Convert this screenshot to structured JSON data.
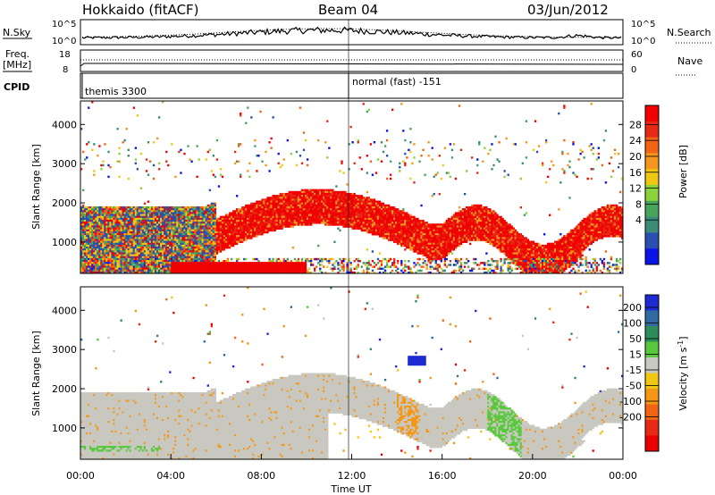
{
  "header": {
    "radar": "Hokkaido (fitACF)",
    "beam": "Beam 04",
    "date": "03/Jun/2012"
  },
  "colors": {
    "power_scale": [
      "#0a14e6",
      "#2a4fb0",
      "#3c8c78",
      "#46a55a",
      "#8cd23c",
      "#f0c814",
      "#f5961e",
      "#f06414",
      "#e62814",
      "#f00000"
    ],
    "velocity_scale": [
      "#1e2ad2",
      "#2f6aa0",
      "#2e8c5a",
      "#58c83c",
      "#c8c8c0",
      "#f0c814",
      "#f59614",
      "#f06414",
      "#e62814",
      "#e80000"
    ]
  },
  "chart_data": [
    {
      "type": "line",
      "panel": "nsky-nsearch",
      "left_label": "N.Sky",
      "right_label": "N.Search",
      "left_ticks": [
        "10^5",
        "10^0"
      ],
      "right_ticks": [
        "10^5",
        "10^0"
      ],
      "xlim": [
        "00:00",
        "24:00"
      ],
      "scale": "log"
    },
    {
      "type": "line",
      "panel": "freq-nave",
      "left_label_top": "Freq.",
      "left_label_unit": "[MHz]",
      "right_label": "Nave",
      "left_ticks": [
        "18",
        "8"
      ],
      "right_ticks": [
        "60",
        "0"
      ],
      "ylim_left": [
        8,
        18
      ],
      "ylim_right": [
        0,
        60
      ]
    },
    {
      "type": "table",
      "panel": "cpid",
      "label": "CPID",
      "entries": [
        {
          "time": "00:00",
          "text": "themis 3300"
        },
        {
          "time": "12:00",
          "text": "normal (fast) -151"
        }
      ]
    },
    {
      "type": "heatmap",
      "panel": "power",
      "ylabel": "Slant Range [km]",
      "colorbar_label": "Power [dB]",
      "colorbar_ticks": [
        "4",
        "8",
        "12",
        "16",
        "20",
        "24",
        "28"
      ],
      "yticks": [
        "1000",
        "2000",
        "3000",
        "4000"
      ],
      "ylim": [
        200,
        4600
      ],
      "xlim": [
        "00:00",
        "24:00"
      ]
    },
    {
      "type": "heatmap",
      "panel": "velocity",
      "ylabel": "Slant Range [km]",
      "colorbar_label": "Velocity [m s",
      "colorbar_label_sup": "-1",
      "colorbar_label_end": "]",
      "colorbar_ticks": [
        "200",
        "100",
        "50",
        "15",
        "-15",
        "-50",
        "-100",
        "-200"
      ],
      "yticks": [
        "1000",
        "2000",
        "3000",
        "4000"
      ],
      "ylim": [
        200,
        4600
      ],
      "xticks": [
        "00:00",
        "04:00",
        "08:00",
        "12:00",
        "16:00",
        "20:00",
        "00:00"
      ],
      "xlabel": "Time UT"
    }
  ]
}
